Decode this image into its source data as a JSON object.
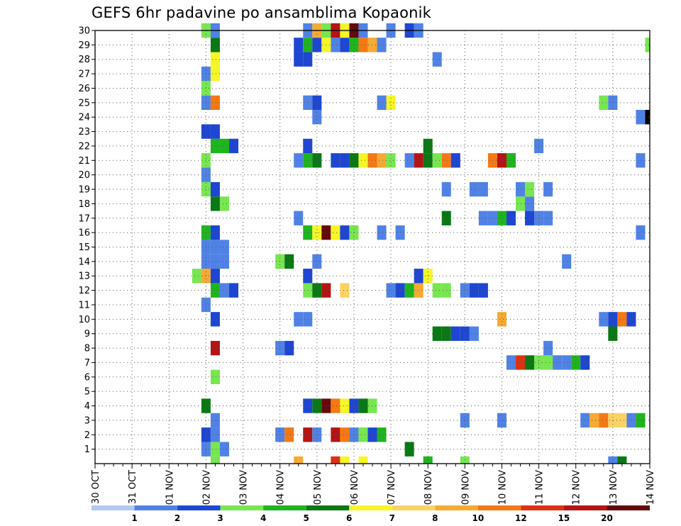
{
  "chart_data": {
    "type": "heatmap",
    "title": "GEFS 6hr padavine po ansamblima Kopaonik",
    "xlabel": "",
    "ylabel": "",
    "x_tick_labels": [
      "30 OCT",
      "31 OCT",
      "01 NOV",
      "02 NOV",
      "03 NOV",
      "04 NOV",
      "05 NOV",
      "06 NOV",
      "07 NOV",
      "08 NOV",
      "09 NOV",
      "10 NOV",
      "11 NOV",
      "12 NOV",
      "13 NOV",
      "14 NOV"
    ],
    "x_steps_per_day": 4,
    "x_range_steps": [
      0,
      60
    ],
    "y_tick_labels": [
      "1",
      "2",
      "3",
      "4",
      "5",
      "6",
      "7",
      "8",
      "9",
      "10",
      "11",
      "12",
      "13",
      "14",
      "15",
      "16",
      "17",
      "18",
      "19",
      "20",
      "21",
      "22",
      "23",
      "24",
      "25",
      "26",
      "27",
      "28",
      "29",
      "30"
    ],
    "y_range": [
      0,
      30
    ],
    "grid": true,
    "color_levels": [
      "1",
      "2",
      "3",
      "4",
      "5",
      "6",
      "7",
      "8",
      "10",
      "12",
      "15",
      "20"
    ],
    "colors": [
      "#b4c8f5",
      "#5082e6",
      "#1e46d2",
      "#78e650",
      "#1eb41e",
      "#0a7814",
      "#f5f528",
      "#fad264",
      "#f5aa32",
      "#f57814",
      "#dc3214",
      "#b41414",
      "#640a0a"
    ],
    "cells": [
      [
        0,
        13,
        3
      ],
      [
        0,
        22,
        8
      ],
      [
        0,
        26,
        10
      ],
      [
        0,
        27,
        6
      ],
      [
        0,
        29,
        6
      ],
      [
        0,
        36,
        4
      ],
      [
        0,
        40,
        3
      ],
      [
        0,
        56,
        1
      ],
      [
        0,
        57,
        5
      ],
      [
        1,
        12,
        1
      ],
      [
        1,
        13,
        3
      ],
      [
        1,
        14,
        1
      ],
      [
        1,
        34,
        5
      ],
      [
        2,
        12,
        2
      ],
      [
        2,
        13,
        1
      ],
      [
        2,
        20,
        1
      ],
      [
        2,
        21,
        9
      ],
      [
        2,
        23,
        11
      ],
      [
        2,
        24,
        1
      ],
      [
        2,
        26,
        11
      ],
      [
        2,
        27,
        9
      ],
      [
        2,
        28,
        1
      ],
      [
        2,
        29,
        3
      ],
      [
        2,
        30,
        2
      ],
      [
        2,
        31,
        4
      ],
      [
        3,
        13,
        1
      ],
      [
        3,
        40,
        1
      ],
      [
        3,
        44,
        1
      ],
      [
        3,
        53,
        1
      ],
      [
        3,
        54,
        8
      ],
      [
        3,
        55,
        9
      ],
      [
        3,
        56,
        7
      ],
      [
        3,
        57,
        7
      ],
      [
        3,
        58,
        1
      ],
      [
        3,
        59,
        4
      ],
      [
        4,
        12,
        5
      ],
      [
        4,
        23,
        2
      ],
      [
        4,
        24,
        5
      ],
      [
        4,
        25,
        12
      ],
      [
        4,
        26,
        9
      ],
      [
        4,
        27,
        6
      ],
      [
        4,
        28,
        2
      ],
      [
        4,
        29,
        5
      ],
      [
        4,
        30,
        3
      ],
      [
        6,
        13,
        3
      ],
      [
        7,
        45,
        1
      ],
      [
        7,
        46,
        10
      ],
      [
        7,
        47,
        5
      ],
      [
        7,
        48,
        3
      ],
      [
        7,
        49,
        3
      ],
      [
        7,
        50,
        1
      ],
      [
        7,
        51,
        1
      ],
      [
        7,
        52,
        4
      ],
      [
        7,
        53,
        2
      ],
      [
        8,
        13,
        11
      ],
      [
        8,
        20,
        1
      ],
      [
        8,
        21,
        2
      ],
      [
        8,
        49,
        1
      ],
      [
        9,
        37,
        5
      ],
      [
        9,
        38,
        5
      ],
      [
        9,
        39,
        2
      ],
      [
        9,
        40,
        2
      ],
      [
        9,
        41,
        1
      ],
      [
        9,
        56,
        5
      ],
      [
        10,
        13,
        2
      ],
      [
        10,
        22,
        1
      ],
      [
        10,
        23,
        1
      ],
      [
        10,
        44,
        8
      ],
      [
        10,
        55,
        1
      ],
      [
        10,
        56,
        2
      ],
      [
        10,
        57,
        9
      ],
      [
        10,
        58,
        2
      ],
      [
        11,
        12,
        1
      ],
      [
        12,
        13,
        4
      ],
      [
        12,
        14,
        1
      ],
      [
        12,
        15,
        2
      ],
      [
        12,
        23,
        3
      ],
      [
        12,
        24,
        5
      ],
      [
        12,
        25,
        11
      ],
      [
        12,
        27,
        7
      ],
      [
        12,
        32,
        1
      ],
      [
        12,
        33,
        2
      ],
      [
        12,
        34,
        4
      ],
      [
        12,
        35,
        8
      ],
      [
        12,
        37,
        3
      ],
      [
        12,
        38,
        3
      ],
      [
        12,
        40,
        1
      ],
      [
        12,
        41,
        2
      ],
      [
        12,
        42,
        2
      ],
      [
        13,
        11,
        3
      ],
      [
        13,
        12,
        8
      ],
      [
        13,
        13,
        2
      ],
      [
        13,
        23,
        2
      ],
      [
        13,
        35,
        2
      ],
      [
        13,
        36,
        6
      ],
      [
        14,
        12,
        1
      ],
      [
        14,
        13,
        1
      ],
      [
        14,
        14,
        1
      ],
      [
        14,
        20,
        3
      ],
      [
        14,
        21,
        5
      ],
      [
        14,
        24,
        1
      ],
      [
        14,
        51,
        1
      ],
      [
        15,
        12,
        1
      ],
      [
        15,
        13,
        1
      ],
      [
        15,
        14,
        1
      ],
      [
        16,
        12,
        4
      ],
      [
        16,
        13,
        2
      ],
      [
        16,
        23,
        4
      ],
      [
        16,
        24,
        6
      ],
      [
        16,
        25,
        12
      ],
      [
        16,
        26,
        6
      ],
      [
        16,
        27,
        2
      ],
      [
        16,
        28,
        3
      ],
      [
        16,
        31,
        1
      ],
      [
        16,
        33,
        1
      ],
      [
        16,
        59,
        1
      ],
      [
        17,
        22,
        1
      ],
      [
        17,
        38,
        5
      ],
      [
        17,
        42,
        1
      ],
      [
        17,
        43,
        1
      ],
      [
        17,
        44,
        4
      ],
      [
        17,
        45,
        2
      ],
      [
        17,
        47,
        2
      ],
      [
        17,
        48,
        1
      ],
      [
        17,
        49,
        1
      ],
      [
        18,
        13,
        5
      ],
      [
        18,
        14,
        3
      ],
      [
        18,
        46,
        3
      ],
      [
        18,
        47,
        1
      ],
      [
        19,
        12,
        3
      ],
      [
        19,
        13,
        2
      ],
      [
        19,
        38,
        1
      ],
      [
        19,
        41,
        1
      ],
      [
        19,
        42,
        1
      ],
      [
        19,
        46,
        1
      ],
      [
        19,
        47,
        3
      ],
      [
        19,
        49,
        1
      ],
      [
        20,
        12,
        1
      ],
      [
        21,
        12,
        3
      ],
      [
        21,
        22,
        1
      ],
      [
        21,
        23,
        4
      ],
      [
        21,
        24,
        5
      ],
      [
        21,
        26,
        2
      ],
      [
        21,
        27,
        2
      ],
      [
        21,
        28,
        5
      ],
      [
        21,
        29,
        6
      ],
      [
        21,
        30,
        9
      ],
      [
        21,
        31,
        8
      ],
      [
        21,
        32,
        3
      ],
      [
        21,
        34,
        1
      ],
      [
        21,
        35,
        11
      ],
      [
        21,
        36,
        5
      ],
      [
        21,
        37,
        3
      ],
      [
        21,
        38,
        9
      ],
      [
        21,
        39,
        2
      ],
      [
        21,
        43,
        9
      ],
      [
        21,
        44,
        11
      ],
      [
        21,
        45,
        4
      ],
      [
        21,
        59,
        1
      ],
      [
        22,
        13,
        4
      ],
      [
        22,
        14,
        4
      ],
      [
        22,
        15,
        2
      ],
      [
        22,
        23,
        2
      ],
      [
        22,
        36,
        5
      ],
      [
        22,
        48,
        1
      ],
      [
        23,
        12,
        2
      ],
      [
        23,
        13,
        2
      ],
      [
        24,
        24,
        1
      ],
      [
        24,
        59,
        1
      ],
      [
        24,
        60,
        13
      ],
      [
        25,
        12,
        1
      ],
      [
        25,
        13,
        9
      ],
      [
        25,
        23,
        1
      ],
      [
        25,
        24,
        2
      ],
      [
        25,
        31,
        1
      ],
      [
        25,
        32,
        6
      ],
      [
        25,
        55,
        3
      ],
      [
        25,
        56,
        1
      ],
      [
        26,
        12,
        3
      ],
      [
        27,
        12,
        1
      ],
      [
        27,
        13,
        6
      ],
      [
        28,
        13,
        6
      ],
      [
        28,
        22,
        2
      ],
      [
        28,
        23,
        2
      ],
      [
        28,
        37,
        1
      ],
      [
        29,
        13,
        5
      ],
      [
        29,
        22,
        2
      ],
      [
        29,
        23,
        4
      ],
      [
        29,
        24,
        2
      ],
      [
        29,
        25,
        6
      ],
      [
        29,
        26,
        1
      ],
      [
        29,
        27,
        2
      ],
      [
        29,
        28,
        4
      ],
      [
        29,
        29,
        9
      ],
      [
        29,
        30,
        8
      ],
      [
        29,
        31,
        1
      ],
      [
        29,
        60,
        3
      ],
      [
        30,
        12,
        3
      ],
      [
        30,
        13,
        1
      ],
      [
        30,
        23,
        1
      ],
      [
        30,
        24,
        8
      ],
      [
        30,
        25,
        3
      ],
      [
        30,
        26,
        11
      ],
      [
        30,
        27,
        6
      ],
      [
        30,
        28,
        12
      ],
      [
        30,
        29,
        1
      ],
      [
        30,
        32,
        1
      ],
      [
        30,
        34,
        2
      ],
      [
        30,
        35,
        1
      ]
    ]
  }
}
